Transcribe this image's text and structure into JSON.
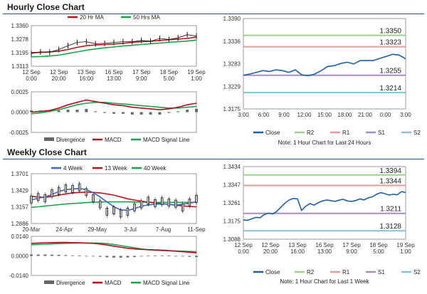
{
  "headers": {
    "hourly": "Hourly Close Chart",
    "weekly": "Weekly Close Chart"
  },
  "colors": {
    "close": "#1f5fa8",
    "r2": "#9fd08a",
    "r1": "#e79a9a",
    "s1": "#a58fc6",
    "s2": "#84c2de",
    "ma_short": "#c0101a",
    "ma_long": "#1aa24a",
    "ma_4": "#3a66c4",
    "price": "#111111",
    "macd": "#b01020",
    "signal": "#1aa24a",
    "divergence": "#666666"
  },
  "chart_data": [
    {
      "id": "hourly_price",
      "type": "line",
      "ylim": [
        1.3113,
        1.336
      ],
      "yticks": [
        "1.3360",
        "1.3278",
        "1.3195",
        "1.3113"
      ],
      "xticks": [
        "12 Sep\n0:00",
        "12 Sep\n20:00",
        "13 Sep\n16:00",
        "16 Sep\n13:00",
        "17 Sep\n9:00",
        "18 Sep\n5:00",
        "19 Sep\n1:00"
      ],
      "series": [
        {
          "name": "20 Hr MA",
          "color_key": "ma_short",
          "values": [
            1.3195,
            1.3197,
            1.32,
            1.3205,
            1.3215,
            1.3228,
            1.3238,
            1.3242,
            1.3245,
            1.3248,
            1.3252,
            1.3258,
            1.3262,
            1.3265,
            1.327,
            1.3274,
            1.3278,
            1.3282,
            1.329
          ]
        },
        {
          "name": "50 Hrs MA",
          "color_key": "ma_long",
          "values": [
            1.317,
            1.3172,
            1.3175,
            1.318,
            1.319,
            1.32,
            1.321,
            1.3218,
            1.3225,
            1.323,
            1.3236,
            1.324,
            1.3245,
            1.325,
            1.3254,
            1.3258,
            1.3262,
            1.3266,
            1.3272
          ]
        },
        {
          "name": "Close",
          "color_key": "price",
          "values": [
            1.319,
            1.32,
            1.3198,
            1.3215,
            1.3238,
            1.3258,
            1.3262,
            1.325,
            1.3252,
            1.3258,
            1.3262,
            1.3262,
            1.327,
            1.3265,
            1.3282,
            1.3276,
            1.3286,
            1.3305,
            1.3296
          ]
        }
      ]
    },
    {
      "id": "hourly_macd",
      "type": "line",
      "ylim": [
        -0.0025,
        0.0025
      ],
      "yticks": [
        "0.0025",
        "0.0000",
        "-0.0025"
      ],
      "legend": [
        "Divergence",
        "MACD",
        "MACD Signal Line"
      ],
      "series": [
        {
          "name": "MACD",
          "color_key": "macd",
          "values": [
            0.0,
            0.0001,
            0.0002,
            0.0005,
            0.0009,
            0.0012,
            0.0015,
            0.0013,
            0.0011,
            0.0009,
            0.0008,
            0.0006,
            0.0005,
            0.0004,
            0.0003,
            0.0004,
            0.0006,
            0.0009,
            0.0011
          ]
        },
        {
          "name": "MACD Signal Line",
          "color_key": "signal",
          "values": [
            -0.0002,
            -0.0001,
            0.0001,
            0.0003,
            0.0006,
            0.0009,
            0.0011,
            0.0012,
            0.0012,
            0.0011,
            0.001,
            0.0009,
            0.0008,
            0.0007,
            0.0006,
            0.0005,
            0.0005,
            0.0006,
            0.0007
          ]
        },
        {
          "name": "Divergence",
          "color_key": "divergence",
          "values": [
            0.0002,
            0.0002,
            0.0001,
            0.0002,
            0.0003,
            0.0003,
            0.0004,
            0.0001,
            -0.0001,
            -0.0002,
            -0.0002,
            -0.0003,
            -0.0003,
            -0.0003,
            -0.0003,
            -0.0001,
            0.0001,
            0.0003,
            0.0004
          ]
        }
      ]
    },
    {
      "id": "hourly_levels",
      "type": "line",
      "ylim": [
        1.3175,
        1.339
      ],
      "yticks": [
        "1.3390",
        "1.3336",
        "1.3283",
        "1.3229",
        "1.3175"
      ],
      "xticks": [
        "3:00",
        "6:00",
        "9:00",
        "12:00",
        "15:00",
        "18:00",
        "21:00",
        "0:00",
        "3:00"
      ],
      "note": "Note: 1 Hour Chart for Last 24 Hours",
      "legend": [
        "Close",
        "R2",
        "R1",
        "S1",
        "S2"
      ],
      "levels": [
        {
          "name": "R2",
          "value": 1.335,
          "label": "1.3350",
          "color_key": "r2"
        },
        {
          "name": "R1",
          "value": 1.3323,
          "label": "1.3323",
          "color_key": "r1"
        },
        {
          "name": "S1",
          "value": 1.3255,
          "label": "1.3255",
          "color_key": "s1"
        },
        {
          "name": "S2",
          "value": 1.3214,
          "label": "1.3214",
          "color_key": "s2"
        }
      ],
      "close": [
        1.3255,
        1.3258,
        1.3262,
        1.3266,
        1.3264,
        1.3268,
        1.3266,
        1.3262,
        1.3268,
        1.3256,
        1.3254,
        1.3258,
        1.3266,
        1.3276,
        1.3278,
        1.3283,
        1.3286,
        1.3282,
        1.329,
        1.329,
        1.329,
        1.3295,
        1.33,
        1.3305,
        1.3303,
        1.3294
      ]
    },
    {
      "id": "weekly_price",
      "type": "line",
      "ylim": [
        1.2886,
        1.3701
      ],
      "yticks": [
        "1.3701",
        "1.3429",
        "1.3157",
        "1.2886"
      ],
      "xticks": [
        "20-Mar",
        "24-Apr",
        "29-May",
        "3-Jul",
        "7-Aug",
        "11-Sep"
      ],
      "series": [
        {
          "name": "4 Week",
          "color_key": "ma_4",
          "values": [
            1.327,
            1.33,
            1.332,
            1.336,
            1.341,
            1.344,
            1.345,
            1.346,
            1.344,
            1.339,
            1.332,
            1.324,
            1.316,
            1.311,
            1.31,
            1.313,
            1.317,
            1.319,
            1.32,
            1.3205,
            1.32,
            1.319,
            1.32,
            1.322,
            1.324
          ]
        },
        {
          "name": "13 Week",
          "color_key": "ma_short",
          "values": [
            1.333,
            1.332,
            1.3315,
            1.333,
            1.335,
            1.337,
            1.3385,
            1.3395,
            1.34,
            1.3395,
            1.3385,
            1.337,
            1.335,
            1.332,
            1.329,
            1.327,
            1.325,
            1.3235,
            1.322,
            1.321,
            1.32,
            1.3185,
            1.3175,
            1.3165,
            1.316
          ]
        },
        {
          "name": "40 Week",
          "color_key": "ma_long",
          "values": [
            1.315,
            1.316,
            1.3172,
            1.3183,
            1.3195,
            1.3205,
            1.3213,
            1.322,
            1.3228,
            1.3235,
            1.3238,
            1.324,
            1.324,
            1.324,
            1.324,
            1.3238,
            1.3236,
            1.3234,
            1.3232,
            1.3232,
            1.3232,
            1.3232,
            1.3232,
            1.3232,
            1.3232
          ]
        },
        {
          "name": "Close",
          "color_key": "price",
          "values": [
            1.328,
            1.332,
            1.33,
            1.338,
            1.342,
            1.346,
            1.345,
            1.348,
            1.34,
            1.33,
            1.32,
            1.308,
            1.31,
            1.305,
            1.308,
            1.315,
            1.32,
            1.326,
            1.322,
            1.325,
            1.323,
            1.321,
            1.315,
            1.323,
            1.329
          ]
        }
      ]
    },
    {
      "id": "weekly_macd",
      "type": "line",
      "ylim": [
        -0.014,
        0.014
      ],
      "yticks": [
        "0.0140",
        "0.0000",
        "-0.0140"
      ],
      "legend": [
        "Divergence",
        "MACD",
        "MACD Signal Line"
      ],
      "series": [
        {
          "name": "MACD",
          "color_key": "macd",
          "values": [
            0.009,
            0.0092,
            0.0094,
            0.0095,
            0.0096,
            0.0096,
            0.0095,
            0.0094,
            0.0092,
            0.009,
            0.0085,
            0.0078,
            0.007,
            0.0062,
            0.0055,
            0.005,
            0.0047,
            0.0045,
            0.0043,
            0.0041,
            0.0038,
            0.0034,
            0.003,
            0.0026,
            0.0022
          ]
        },
        {
          "name": "MACD Signal Line",
          "color_key": "signal",
          "values": [
            0.008,
            0.0082,
            0.0084,
            0.0086,
            0.0088,
            0.009,
            0.0091,
            0.0092,
            0.0092,
            0.0092,
            0.0091,
            0.0088,
            0.0082,
            0.0074,
            0.0066,
            0.0058,
            0.005,
            0.0044,
            0.004,
            0.0038,
            0.0036,
            0.0035,
            0.0034,
            0.0032,
            0.003
          ]
        },
        {
          "name": "Divergence",
          "color_key": "divergence",
          "values": [
            0.001,
            0.001,
            0.001,
            0.0009,
            0.0008,
            0.0006,
            0.0004,
            0.0002,
            0.0,
            -0.0002,
            -0.0006,
            -0.001,
            -0.0012,
            -0.0012,
            -0.0011,
            -0.0008,
            -0.0003,
            0.0001,
            0.0003,
            0.0003,
            0.0002,
            -0.0001,
            -0.0004,
            -0.0006,
            -0.0008
          ]
        }
      ]
    },
    {
      "id": "weekly_levels",
      "type": "line",
      "ylim": [
        1.3088,
        1.3434
      ],
      "yticks": [
        "1.3434",
        "1.3347",
        "1.3261",
        "1.3175",
        "1.3088"
      ],
      "xticks": [
        "12 Sep\n0:00",
        "12 Sep\n20:00",
        "13 Sep\n16:00",
        "16 Sep\n13:00",
        "17 Sep\n9:00",
        "18 Sep\n5:00",
        "19 Sep\n1:00"
      ],
      "note": "Note: 1 Hour Chart for Last 1 Week",
      "legend": [
        "Close",
        "R2",
        "R1",
        "S1",
        "S2"
      ],
      "levels": [
        {
          "name": "R2",
          "value": 1.3394,
          "label": "1.3394",
          "color_key": "r2"
        },
        {
          "name": "R1",
          "value": 1.3344,
          "label": "1.3344",
          "color_key": "r1"
        },
        {
          "name": "S1",
          "value": 1.3211,
          "label": "1.3211",
          "color_key": "s1"
        },
        {
          "name": "S2",
          "value": 1.3128,
          "label": "1.3128",
          "color_key": "s2"
        }
      ],
      "close": [
        1.318,
        1.3178,
        1.3185,
        1.3192,
        1.319,
        1.3205,
        1.3212,
        1.3208,
        1.322,
        1.324,
        1.326,
        1.3275,
        1.3282,
        1.328,
        1.3225,
        1.3245,
        1.3258,
        1.325,
        1.3262,
        1.327,
        1.3275,
        1.3272,
        1.3268,
        1.3274,
        1.3278,
        1.327,
        1.3268,
        1.3272,
        1.328,
        1.3275,
        1.3285,
        1.329,
        1.3302,
        1.331,
        1.3305,
        1.3298,
        1.3302,
        1.33,
        1.3315,
        1.331
      ]
    }
  ]
}
